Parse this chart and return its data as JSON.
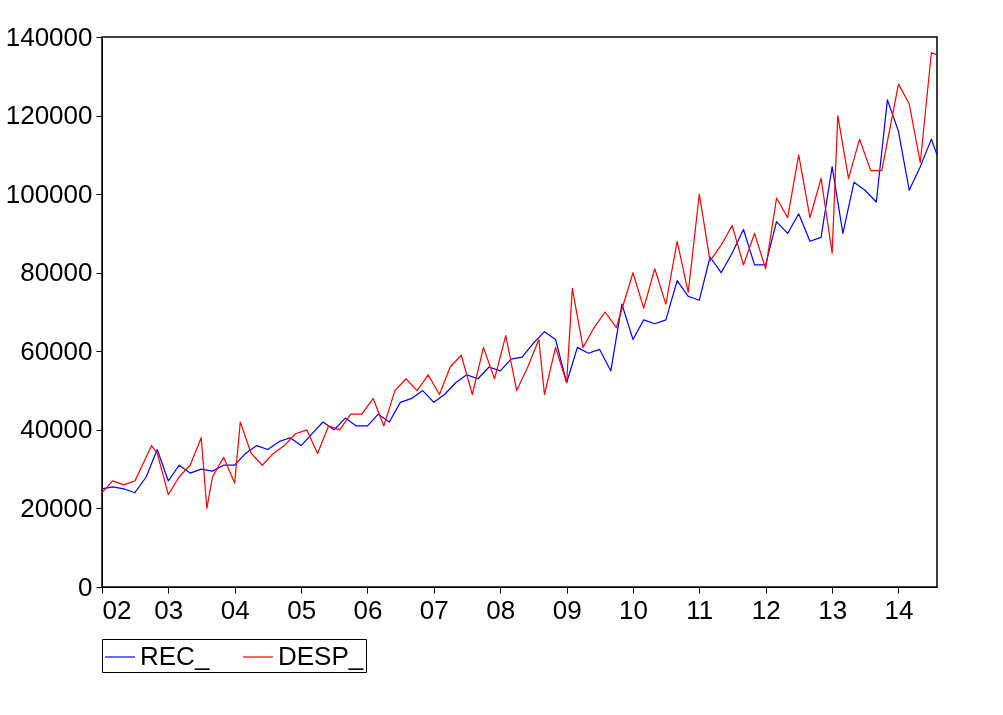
{
  "chart_data": {
    "type": "line",
    "x": [
      "2002-01",
      "2002-03",
      "2002-05",
      "2002-07",
      "2002-09",
      "2002-11",
      "2003-01",
      "2003-03",
      "2003-05",
      "2003-07",
      "2003-09",
      "2003-11",
      "2004-01",
      "2004-03",
      "2004-05",
      "2004-07",
      "2004-09",
      "2004-11",
      "2005-01",
      "2005-03",
      "2005-05",
      "2005-07",
      "2005-09",
      "2005-11",
      "2006-01",
      "2006-03",
      "2006-05",
      "2006-07",
      "2006-09",
      "2006-11",
      "2007-01",
      "2007-03",
      "2007-05",
      "2007-07",
      "2007-09",
      "2007-11",
      "2008-01",
      "2008-03",
      "2008-05",
      "2008-07",
      "2008-09",
      "2008-11",
      "2009-01",
      "2009-03",
      "2009-05",
      "2009-07",
      "2009-09",
      "2009-11",
      "2010-01",
      "2010-03",
      "2010-05",
      "2010-07",
      "2010-09",
      "2010-11",
      "2011-01",
      "2011-03",
      "2011-05",
      "2011-07",
      "2011-09",
      "2011-11",
      "2012-01",
      "2012-03",
      "2012-05",
      "2012-07",
      "2012-09",
      "2012-11",
      "2013-01",
      "2013-03",
      "2013-05",
      "2013-07",
      "2013-09",
      "2013-11",
      "2014-01",
      "2014-03",
      "2014-05",
      "2014-07",
      "2014-08"
    ],
    "series": [
      {
        "name": "REC_",
        "color": "#0000ff",
        "values": [
          25000,
          25500,
          25000,
          24000,
          28000,
          35000,
          27000,
          31000,
          29000,
          30000,
          29500,
          31000,
          31000,
          34000,
          36000,
          35000,
          37000,
          38000,
          36000,
          39000,
          42000,
          40000,
          43000,
          41000,
          41000,
          44000,
          42000,
          47000,
          48000,
          50000,
          47000,
          49000,
          52000,
          54000,
          53000,
          56000,
          55000,
          58000,
          58500,
          62000,
          65000,
          63000,
          52000,
          61000,
          59500,
          60500,
          55000,
          72000,
          63000,
          68000,
          67000,
          68000,
          78000,
          74000,
          73000,
          84000,
          80000,
          85000,
          91000,
          82000,
          82000,
          93000,
          90000,
          95000,
          88000,
          89000,
          107000,
          90000,
          103000,
          101000,
          98000,
          124000,
          116000,
          101000,
          107000,
          114000,
          110000
        ]
      },
      {
        "name": "DESP_",
        "color": "#ff0000",
        "x": [
          "2002-01",
          "2002-03",
          "2002-05",
          "2002-07",
          "2002-10",
          "2002-11",
          "2003-01",
          "2003-03",
          "2003-05",
          "2003-07",
          "2003-08",
          "2003-09",
          "2003-11",
          "2004-01",
          "2004-02",
          "2004-04",
          "2004-06",
          "2004-08",
          "2004-10",
          "2004-12",
          "2005-02",
          "2005-04",
          "2005-06",
          "2005-08",
          "2005-10",
          "2005-12",
          "2006-02",
          "2006-04",
          "2006-06",
          "2006-08",
          "2006-10",
          "2006-12",
          "2007-02",
          "2007-04",
          "2007-06",
          "2007-08",
          "2007-10",
          "2007-12",
          "2008-02",
          "2008-04",
          "2008-06",
          "2008-08",
          "2008-09",
          "2008-11",
          "2009-01",
          "2009-02",
          "2009-04",
          "2009-06",
          "2009-08",
          "2009-10",
          "2010-01",
          "2010-03",
          "2010-05",
          "2010-07",
          "2010-09",
          "2010-11",
          "2011-01",
          "2011-03",
          "2011-05",
          "2011-07",
          "2011-09",
          "2011-11",
          "2012-01",
          "2012-03",
          "2012-05",
          "2012-07",
          "2012-09",
          "2012-11",
          "2013-01",
          "2013-02",
          "2013-04",
          "2013-06",
          "2013-08",
          "2013-10",
          "2014-01",
          "2014-03",
          "2014-05",
          "2014-07",
          "2014-08"
        ],
        "values": [
          24000,
          27000,
          26000,
          27000,
          36000,
          34000,
          23500,
          28000,
          31000,
          38000,
          20000,
          28000,
          33000,
          26500,
          42000,
          34000,
          31000,
          34000,
          36000,
          39000,
          40000,
          34000,
          41000,
          40000,
          44000,
          44000,
          48000,
          41000,
          50000,
          53000,
          50000,
          54000,
          49000,
          56000,
          59000,
          49000,
          61000,
          53000,
          64000,
          50000,
          56000,
          63000,
          49000,
          61000,
          52000,
          76000,
          61000,
          66000,
          70000,
          66000,
          80000,
          71000,
          81000,
          72000,
          88000,
          75000,
          100000,
          83000,
          87000,
          92000,
          82000,
          90000,
          81000,
          99000,
          94000,
          110000,
          94000,
          104000,
          85000,
          120000,
          104000,
          114000,
          106000,
          106000,
          128000,
          123000,
          108000,
          136000,
          135500
        ]
      }
    ],
    "xlim": [
      "2002-01",
      "2014-08"
    ],
    "xticks": [
      {
        "value": "2002-01",
        "label": "02"
      },
      {
        "value": "2003-01",
        "label": "03"
      },
      {
        "value": "2004-01",
        "label": "04"
      },
      {
        "value": "2005-01",
        "label": "05"
      },
      {
        "value": "2006-01",
        "label": "06"
      },
      {
        "value": "2007-01",
        "label": "07"
      },
      {
        "value": "2008-01",
        "label": "08"
      },
      {
        "value": "2009-01",
        "label": "09"
      },
      {
        "value": "2010-01",
        "label": "10"
      },
      {
        "value": "2011-01",
        "label": "11"
      },
      {
        "value": "2012-01",
        "label": "12"
      },
      {
        "value": "2013-01",
        "label": "13"
      },
      {
        "value": "2014-01",
        "label": "14"
      }
    ],
    "ylim": [
      0,
      140000
    ],
    "yticks": [
      0,
      20000,
      40000,
      60000,
      80000,
      100000,
      120000,
      140000
    ],
    "grid": false,
    "legend": "bottom",
    "line_style": "solid",
    "marker": "none"
  }
}
